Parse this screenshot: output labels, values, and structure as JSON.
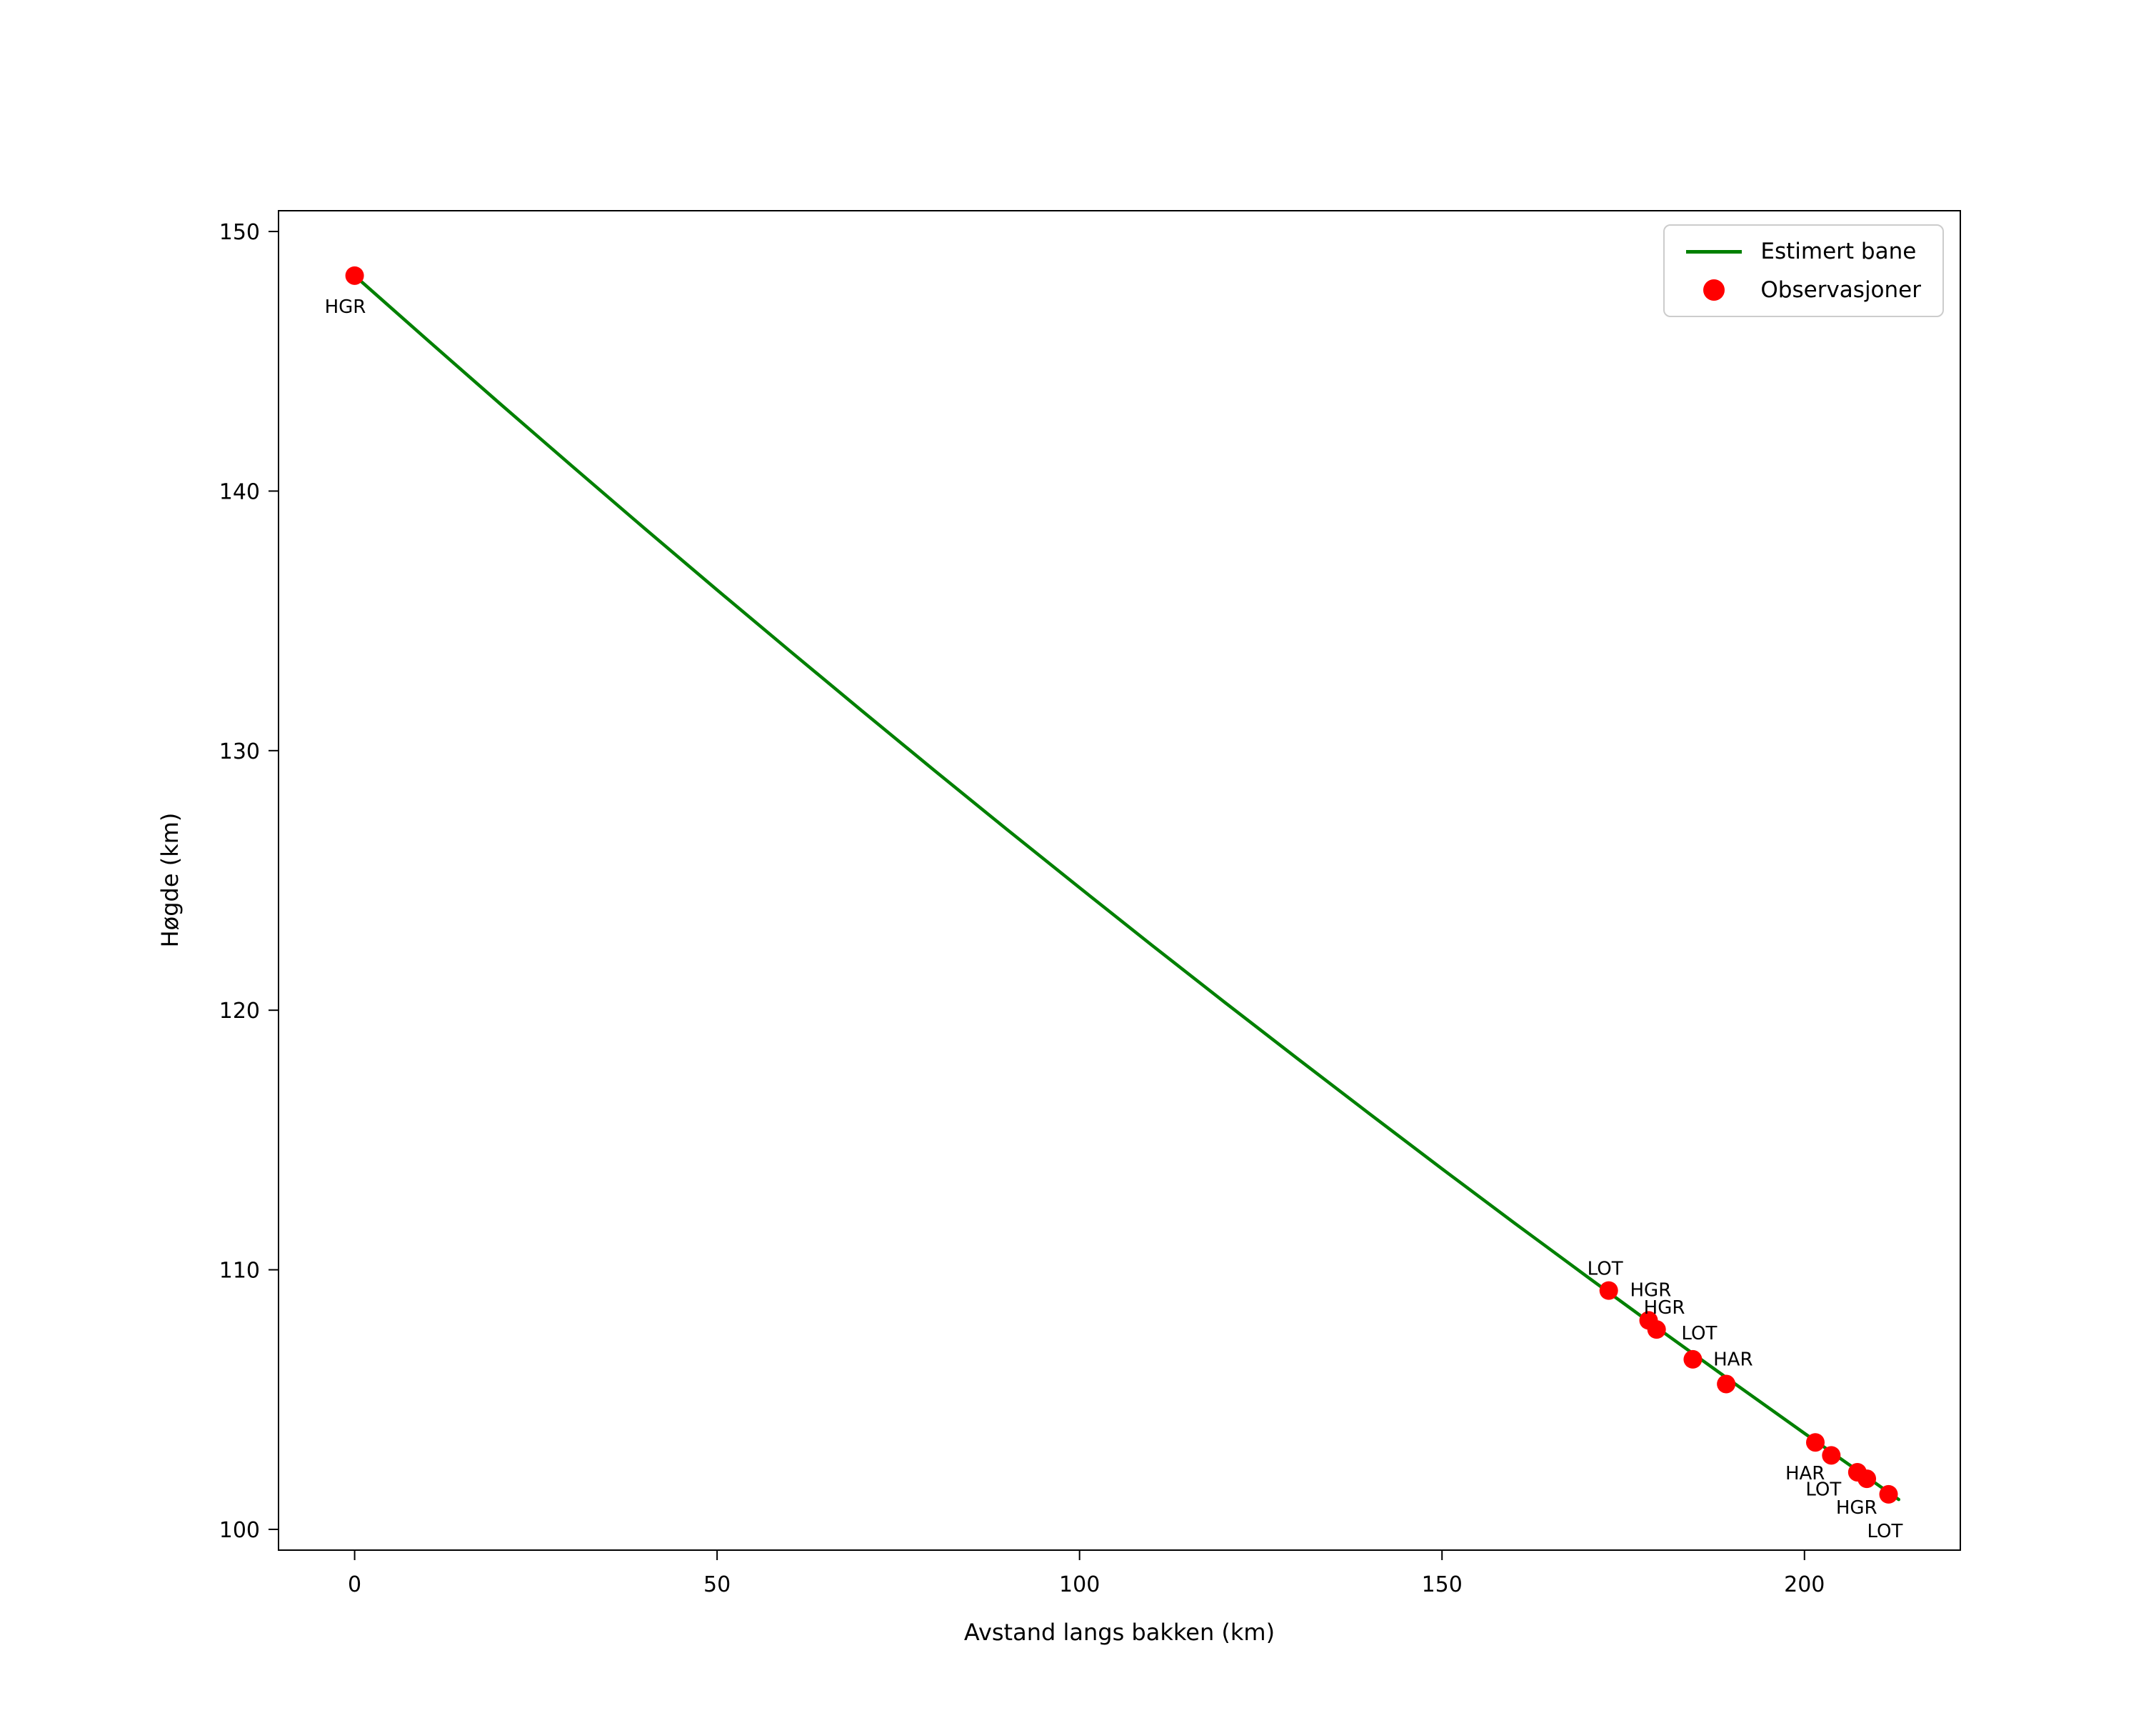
{
  "figure": {
    "background_color": "#ffffff",
    "text_color": "#000000"
  },
  "chart_data": {
    "type": "line",
    "title": "",
    "xlabel": "Avstand langs bakken (km)",
    "ylabel": "Høgde (km)",
    "xlim": [
      -10.5,
      221.5
    ],
    "ylim": [
      99.2,
      150.8
    ],
    "xticks": [
      0,
      50,
      100,
      150,
      200
    ],
    "yticks": [
      100,
      110,
      120,
      130,
      140,
      150
    ],
    "grid": false,
    "legend": {
      "position": "upper right"
    },
    "series": [
      {
        "name": "Estimert bane",
        "type": "line",
        "color": "#008000",
        "points": [
          [
            0,
            148.3
          ],
          [
            10,
            145.83
          ],
          [
            20,
            143.38
          ],
          [
            30,
            140.96
          ],
          [
            40,
            138.56
          ],
          [
            50,
            136.19
          ],
          [
            60,
            133.85
          ],
          [
            70,
            131.53
          ],
          [
            80,
            129.23
          ],
          [
            90,
            126.96
          ],
          [
            100,
            124.72
          ],
          [
            110,
            122.5
          ],
          [
            120,
            120.31
          ],
          [
            130,
            118.15
          ],
          [
            140,
            116.01
          ],
          [
            150,
            113.89
          ],
          [
            160,
            111.8
          ],
          [
            170,
            109.74
          ],
          [
            180,
            107.7
          ],
          [
            190,
            105.69
          ],
          [
            200,
            103.7
          ],
          [
            210,
            101.74
          ],
          [
            213,
            101.15
          ]
        ]
      },
      {
        "name": "Observasjoner",
        "type": "scatter",
        "color": "#ff0000",
        "points": [
          {
            "x": 0,
            "y": 148.3,
            "label": "HGR",
            "label_offset": [
              -42,
              52
            ]
          },
          {
            "x": 173,
            "y": 109.2,
            "label": "LOT",
            "label_offset": [
              -30,
              -22
            ]
          },
          {
            "x": 178.5,
            "y": 108.05,
            "label": "HGR",
            "label_offset": [
              -26,
              -34
            ]
          },
          {
            "x": 179.6,
            "y": 107.7,
            "label": "HGR",
            "label_offset": [
              -18,
              -22
            ]
          },
          {
            "x": 184.6,
            "y": 106.55,
            "label": "LOT",
            "label_offset": [
              -16,
              -28
            ]
          },
          {
            "x": 189.2,
            "y": 105.6,
            "label": "HAR",
            "label_offset": [
              -18,
              -26
            ]
          },
          {
            "x": 201.5,
            "y": 103.35,
            "label": "HAR",
            "label_offset": [
              -42,
              52
            ]
          },
          {
            "x": 203.7,
            "y": 102.85,
            "label": "LOT",
            "label_offset": [
              -36,
              56
            ]
          },
          {
            "x": 207.3,
            "y": 102.2,
            "label": "HGR",
            "label_offset": [
              -30,
              58
            ]
          },
          {
            "x": 208.6,
            "y": 101.95,
            "label": "",
            "label_offset": [
              0,
              0
            ]
          },
          {
            "x": 211.6,
            "y": 101.35,
            "label": "LOT",
            "label_offset": [
              -30,
              60
            ]
          }
        ]
      }
    ]
  }
}
